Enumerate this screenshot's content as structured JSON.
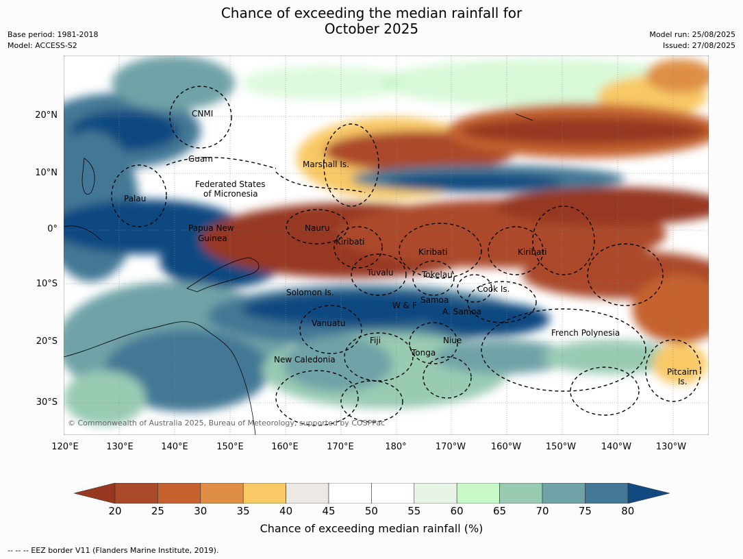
{
  "title_line1": "Chance of exceeding the median rainfall for",
  "title_line2": "October 2025",
  "meta_left": [
    "Base period: 1981-2018",
    "Model: ACCESS-S2"
  ],
  "meta_right": [
    "Model run: 25/08/2025",
    "Issued: 27/08/2025"
  ],
  "lat_labels": [
    "20°N",
    "10°N",
    "0°",
    "10°S",
    "20°S",
    "30°S"
  ],
  "lon_labels": [
    "120°E",
    "130°E",
    "140°E",
    "150°E",
    "160°E",
    "170°E",
    "180°",
    "170°W",
    "160°W",
    "150°W",
    "140°W",
    "130°W"
  ],
  "regions": [
    "CNMI",
    "Guam",
    "Marshall Is.",
    "Federated States",
    "of Micronesia",
    "Palau",
    "Papua New",
    "Guinea",
    "Nauru",
    "Kiribati",
    "Kiribati",
    "Kiribati",
    "Tuvalu",
    "Tokelau",
    "Solomon Is.",
    "Samoa",
    "W & F",
    "A. Samoa",
    "Cook Is.",
    "Vanuatu",
    "Fiji",
    "Niue",
    "Tonga",
    "New Caledonia",
    "French Polynesia",
    "Pitcairn",
    "Is."
  ],
  "copyright": "© Commonwealth of Australia 2025, Bureau of Meteorology, supported by COSPPac",
  "colorbar": {
    "ticks": [
      "20",
      "25",
      "30",
      "35",
      "40",
      "45",
      "50",
      "55",
      "60",
      "65",
      "70",
      "75",
      "80"
    ],
    "colors": [
      "#ab4a2b",
      "#c5622f",
      "#de8f45",
      "#f9c966",
      "#ece9e4",
      "#ffffff",
      "#ffffff",
      "#e8f5e6",
      "#c8f7c8",
      "#99cbb3",
      "#6fa3a7",
      "#427895"
    ],
    "under_color": "#963820",
    "over_color": "#114a80",
    "label": "Chance of exceeding median rainfall (%)"
  },
  "footnote": "--  --  -- EEZ border V11 (Flanders Marine Institute, 2019)."
}
